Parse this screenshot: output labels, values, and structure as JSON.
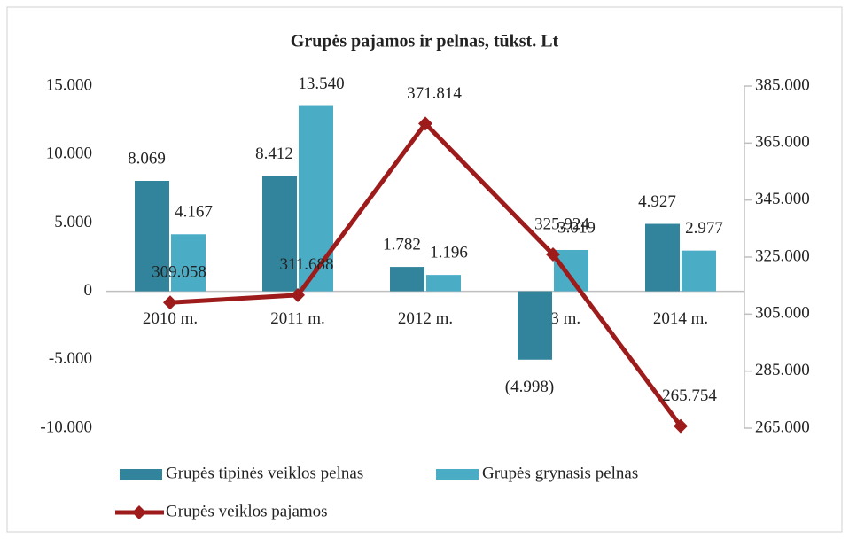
{
  "chart_data": {
    "type": "bar-line",
    "title": "Grupės pajamos ir pelnas, tūkst. Lt",
    "categories": [
      "2010 m.",
      "2011 m.",
      "2012 m.",
      "2013 m.",
      "2014 m."
    ],
    "series": [
      {
        "name": "Grupės tipinės veiklos pelnas",
        "type": "bar",
        "color": "#31849b",
        "values": [
          8069,
          8412,
          1782,
          -4998,
          4927
        ],
        "value_labels": [
          "8.069",
          "8.412",
          "1.782",
          "(4.998)",
          "4.927"
        ]
      },
      {
        "name": "Grupės grynasis pelnas",
        "type": "bar",
        "color": "#4bacc6",
        "values": [
          4167,
          13540,
          1196,
          3019,
          2977
        ],
        "value_labels": [
          "4.167",
          "13.540",
          "1.196",
          "3.019",
          "2.977"
        ]
      },
      {
        "name": "Grupės veiklos pajamos",
        "type": "line",
        "axis": "y2",
        "color": "#9e1b1b",
        "values": [
          309058,
          311688,
          371814,
          325924,
          265754
        ],
        "value_labels": [
          "309.058",
          "311.688",
          "371.814",
          "325.924",
          "265.754"
        ]
      }
    ],
    "ylim": [
      -10000,
      15000
    ],
    "yticks": [
      {
        "value": -10000,
        "label": "-10.000"
      },
      {
        "value": -5000,
        "label": "-5.000"
      },
      0,
      {
        "value": 5000,
        "label": "5.000"
      },
      {
        "value": 10000,
        "label": "10.000"
      },
      {
        "value": 15000,
        "label": "15.000"
      }
    ],
    "y2lim": [
      265000,
      385000
    ],
    "y2ticks": [
      {
        "value": 265000,
        "label": "265.000"
      },
      {
        "value": 285000,
        "label": "285.000"
      },
      {
        "value": 305000,
        "label": "305.000"
      },
      {
        "value": 325000,
        "label": "325.000"
      },
      {
        "value": 345000,
        "label": "345.000"
      },
      {
        "value": 365000,
        "label": "365.000"
      },
      {
        "value": 385000,
        "label": "385.000"
      }
    ],
    "legend": "bottom"
  }
}
